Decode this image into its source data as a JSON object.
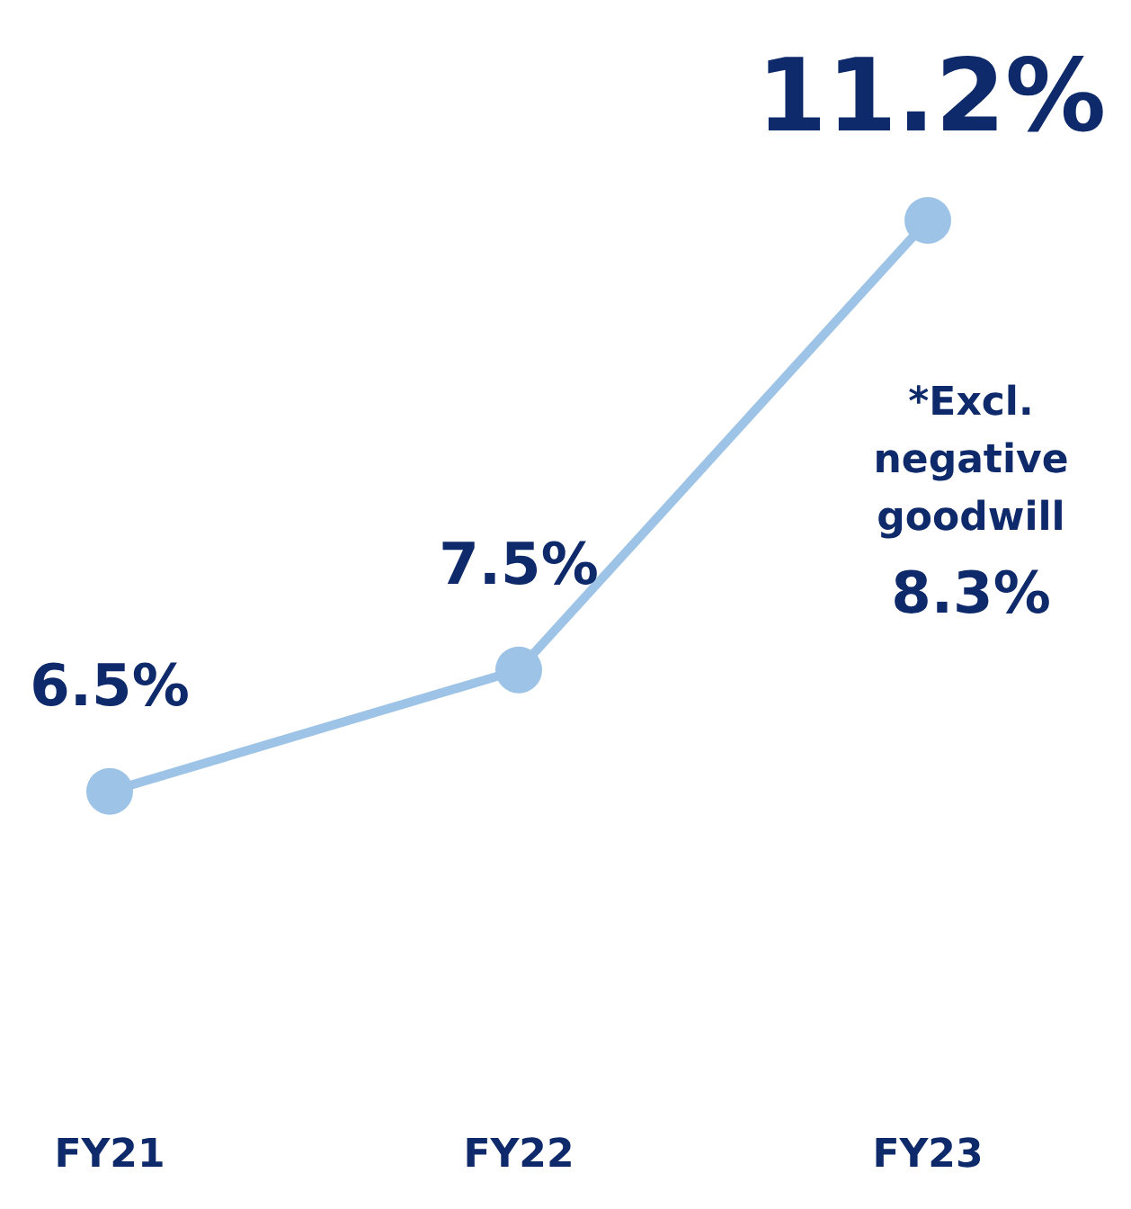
{
  "chart_data": {
    "type": "line",
    "categories": [
      "FY21",
      "FY22",
      "FY23"
    ],
    "series": [
      {
        "color": "#9dc3e6",
        "values": [
          6.5,
          7.5,
          11.2
        ],
        "value_labels": [
          "6.5%",
          "7.5%",
          "11.2%"
        ]
      }
    ],
    "marker": "circle",
    "line_style": "solid",
    "grid": false,
    "legend": false,
    "tick_labels": "x",
    "annotations": [
      "*Excl. negative goodwill",
      "8.3%"
    ]
  }
}
